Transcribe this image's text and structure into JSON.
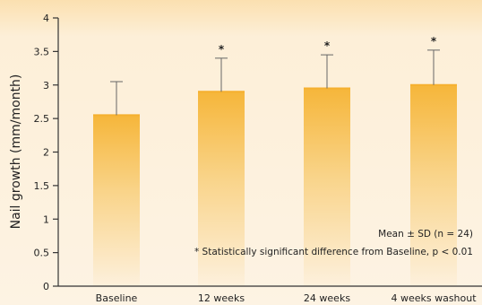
{
  "chart_data": {
    "type": "bar",
    "categories": [
      "Baseline",
      "12 weeks",
      "24 weeks",
      "4 weeks washout"
    ],
    "values": [
      2.55,
      2.9,
      2.95,
      3.0
    ],
    "error": [
      0.5,
      0.5,
      0.5,
      0.52
    ],
    "significant": [
      "",
      "*",
      "*",
      "*"
    ],
    "ylabel": "Nail growth (mm/month)",
    "ylim": [
      0,
      4
    ],
    "yticks": [
      "0",
      "0.5",
      "1",
      "1.5",
      "2",
      "2.5",
      "3",
      "3.5",
      "4"
    ],
    "ytick_values": [
      0,
      0.5,
      1,
      1.5,
      2,
      2.5,
      3,
      3.5,
      4
    ],
    "annotations": {
      "mean_sd": "Mean ± SD (n = 24)",
      "significance": "* Statistically significant difference from Baseline, p < 0.01"
    },
    "colors": {
      "bar_top": "#f6b83e",
      "bar_bottom": "#fdf0dc",
      "axis": "#333333",
      "background_top": "#fbe3b8",
      "background": "#fdf2e0"
    },
    "grid": false
  }
}
